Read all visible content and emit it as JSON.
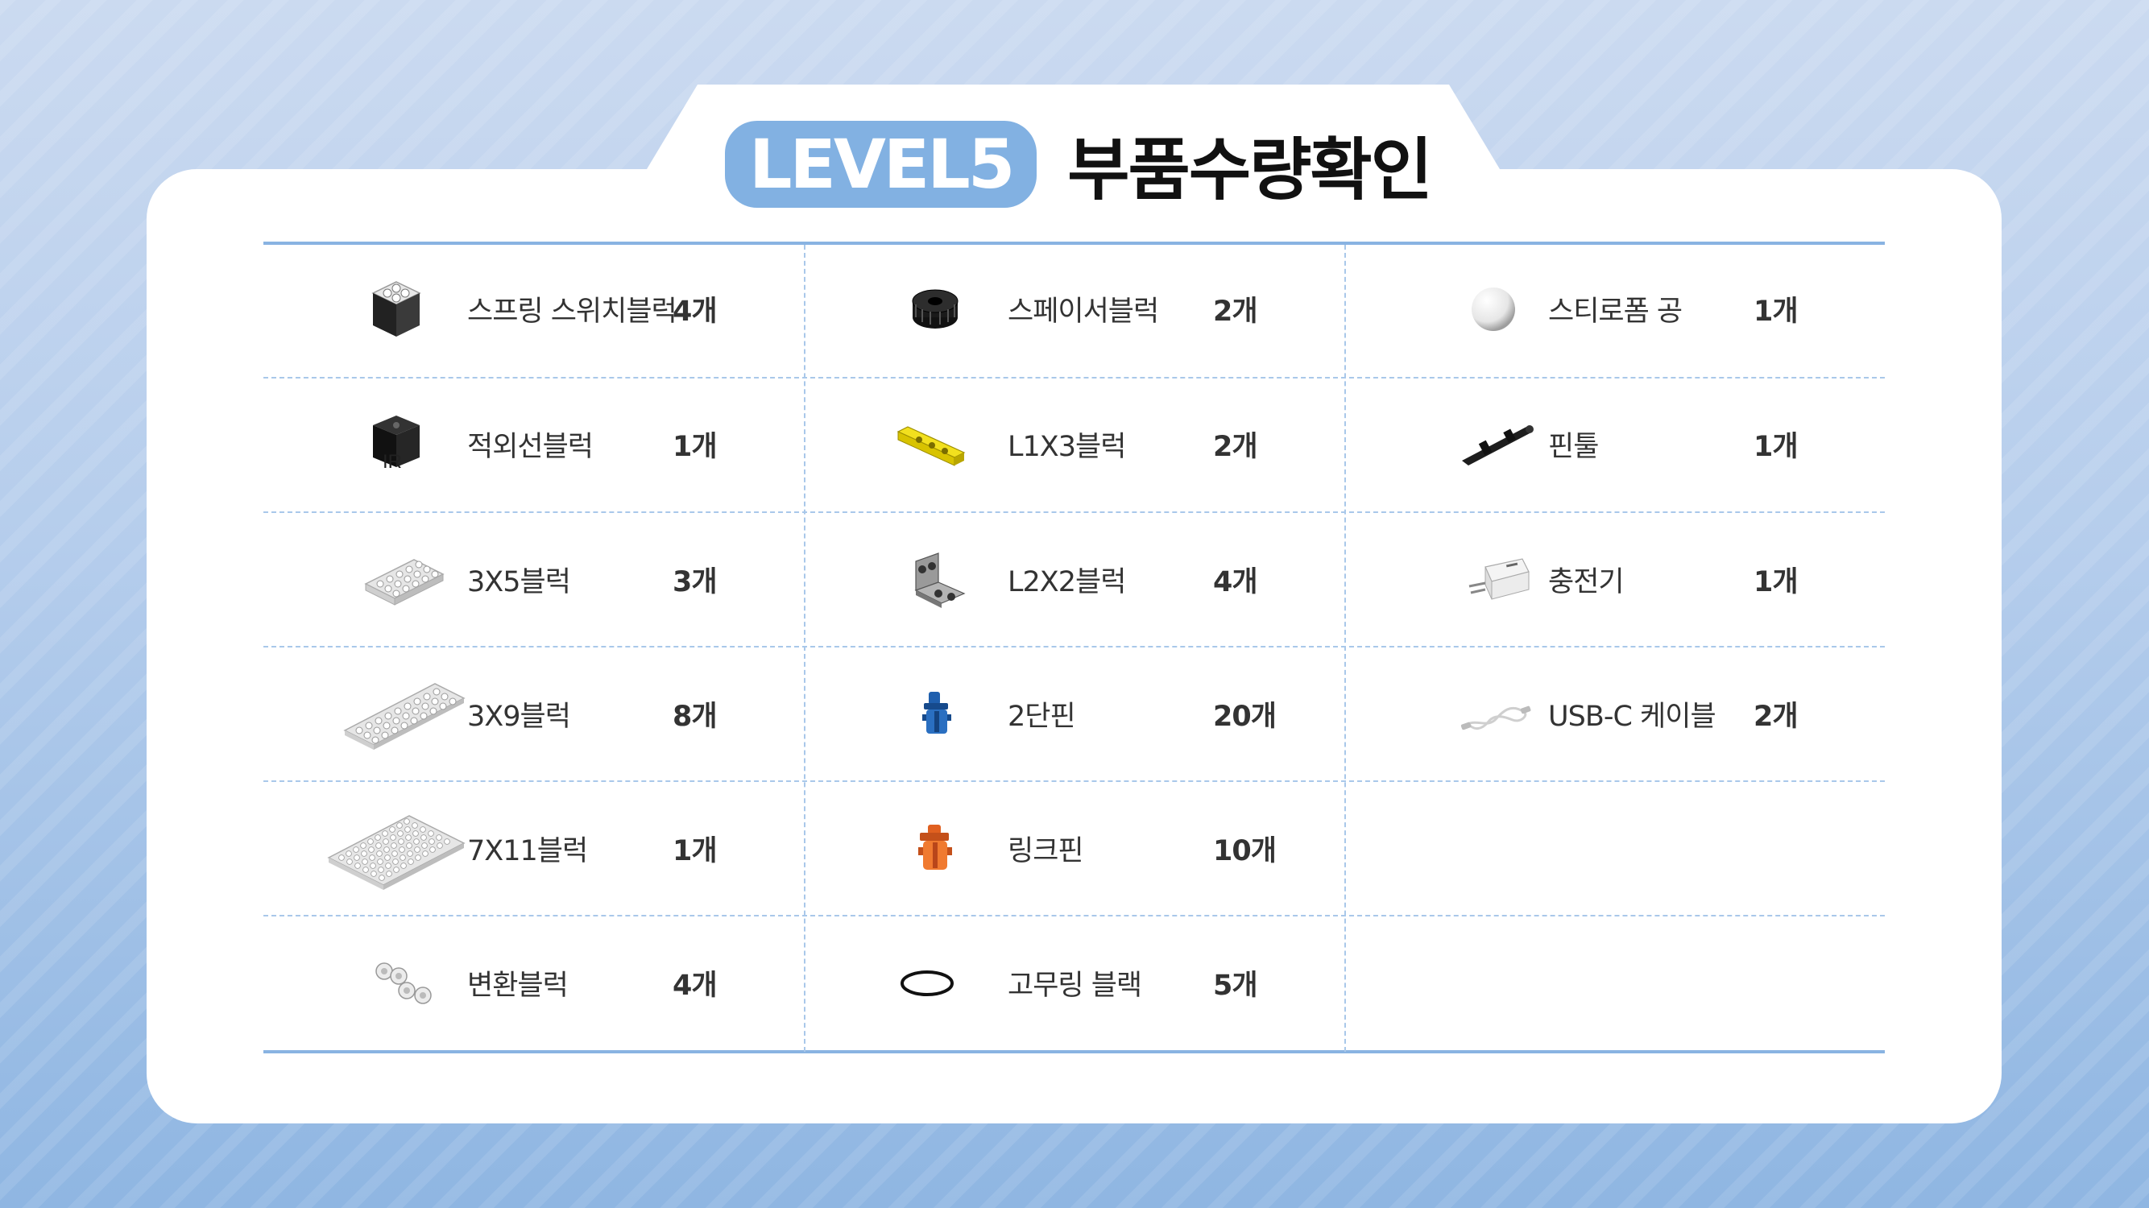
{
  "header": {
    "level_badge": "LEVEL5",
    "title": "부품수량확인"
  },
  "columns": [
    {
      "items": [
        {
          "name": "스프링 스위치블럭",
          "qty": "4개",
          "icon": "spring-switch-block-icon"
        },
        {
          "name": "적외선블럭",
          "qty": "1개",
          "icon": "infrared-block-icon",
          "icon_label": "IR"
        },
        {
          "name": "3X5블럭",
          "qty": "3개",
          "icon": "block-3x5-icon"
        },
        {
          "name": "3X9블럭",
          "qty": "8개",
          "icon": "block-3x9-icon"
        },
        {
          "name": "7X11블럭",
          "qty": "1개",
          "icon": "block-7x11-icon"
        },
        {
          "name": "변환블럭",
          "qty": "4개",
          "icon": "converter-block-icon"
        }
      ]
    },
    {
      "items": [
        {
          "name": "스페이서블럭",
          "qty": "2개",
          "icon": "spacer-block-icon"
        },
        {
          "name": "L1X3블럭",
          "qty": "2개",
          "icon": "l1x3-block-icon"
        },
        {
          "name": "L2X2블럭",
          "qty": "4개",
          "icon": "l2x2-block-icon"
        },
        {
          "name": "2단핀",
          "qty": "20개",
          "icon": "two-step-pin-icon"
        },
        {
          "name": "링크핀",
          "qty": "10개",
          "icon": "link-pin-icon"
        },
        {
          "name": "고무링 블랙",
          "qty": "5개",
          "icon": "rubber-ring-icon"
        }
      ]
    },
    {
      "items": [
        {
          "name": "스티로폼 공",
          "qty": "1개",
          "icon": "styrofoam-ball-icon"
        },
        {
          "name": "핀툴",
          "qty": "1개",
          "icon": "pin-tool-icon"
        },
        {
          "name": "충전기",
          "qty": "1개",
          "icon": "charger-icon"
        },
        {
          "name": "USB-C 케이블",
          "qty": "2개",
          "icon": "usb-c-cable-icon"
        }
      ]
    }
  ],
  "colors": {
    "accent": "#82b1e2",
    "grid_line": "#89b3e2",
    "text": "#333333",
    "title_text": "#111111"
  }
}
